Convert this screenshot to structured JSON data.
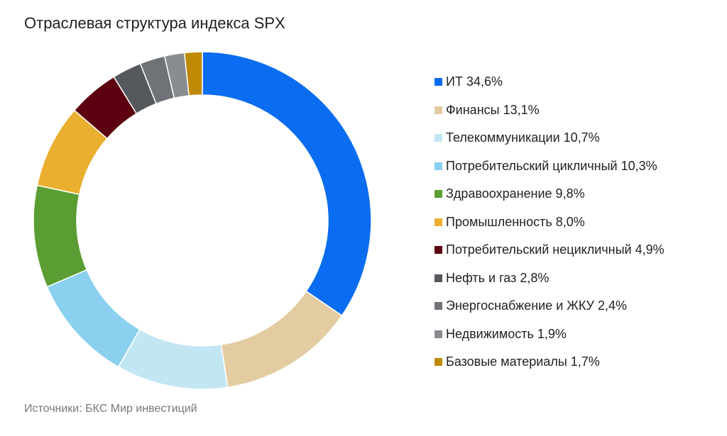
{
  "chart_data": {
    "type": "pie",
    "title": "Отраслевая структура индекса SPX",
    "source": "Источники: БКС Мир инвестиций",
    "legend": "right",
    "slices": [
      {
        "label": "ИТ 34,6%",
        "value": 34.6,
        "color": "#0A6CF0"
      },
      {
        "label": "Финансы 13,1%",
        "value": 13.1,
        "color": "#E3CCA1"
      },
      {
        "label": "Телекоммуникации 10,7%",
        "value": 10.7,
        "color": "#C3E6F4"
      },
      {
        "label": "Потребительский цикличный 10,3%",
        "value": 10.3,
        "color": "#8BD0EE"
      },
      {
        "label": "Здравоохранение 9,8%",
        "value": 9.8,
        "color": "#5A9E33"
      },
      {
        "label": "Промышленность 8,0%",
        "value": 8.0,
        "color": "#EBAF2F"
      },
      {
        "label": "Потребительский нецикличный 4,9%",
        "value": 4.9,
        "color": "#5C0010"
      },
      {
        "label": "Нефть и газ 2,8%",
        "value": 2.8,
        "color": "#55585C"
      },
      {
        "label": "Энергоснабжение и ЖКУ 2,4%",
        "value": 2.4,
        "color": "#6F7378"
      },
      {
        "label": "Недвижимость 1,9%",
        "value": 1.9,
        "color": "#898D92"
      },
      {
        "label": "Базовые материалы 1,7%",
        "value": 1.7,
        "color": "#BF8A05"
      }
    ]
  }
}
